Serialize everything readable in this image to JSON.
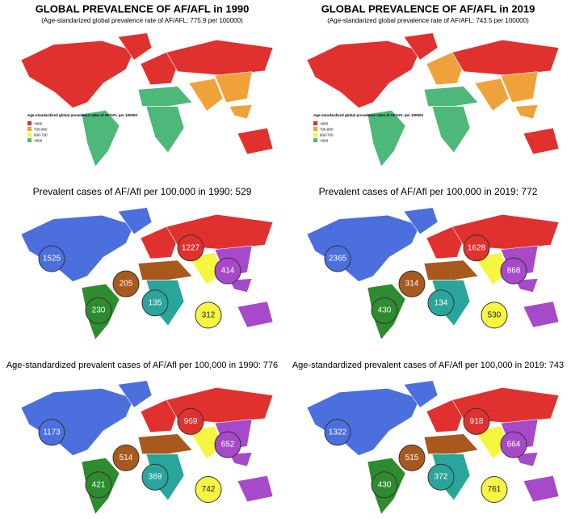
{
  "panels": [
    {
      "title": "GLOBAL PREVALENCE OF AF/AFL in 1990",
      "subtitle": "(Age-standarized global prevalence rate of AF/AFL: 775.9 per 100000)",
      "legend": {
        "title": "Age-standardized global prevalence rates of AF/AFL per 100000",
        "items": [
          ">800",
          "700-800",
          "600-700",
          "<600"
        ]
      }
    },
    {
      "title": "GLOBAL PREVALENCE OF AF/AFL in 2019",
      "subtitle": "(Age-standarized global prevalence rate of AF/AFL: 743.5 per 100000)",
      "legend": {
        "title": "Age-standardized global prevalence rates of AF/AFL per 100000",
        "items": [
          ">800",
          "700-800",
          "600-700",
          "<600"
        ]
      }
    },
    {
      "title": "Prevalent cases of AF/Afl per 100,000 in 1990: 529",
      "bubbles": [
        1525,
        1227,
        205,
        414,
        230,
        135,
        312
      ]
    },
    {
      "title": "Prevalent cases of AF/Afl per 100,000 in 2019: 772",
      "bubbles": [
        2365,
        1628,
        314,
        868,
        430,
        134,
        530
      ]
    },
    {
      "title": "Age-standardized prevalent cases of AF/Afl per 100,000 in 1990: 776",
      "bubbles": [
        1173,
        969,
        514,
        652,
        421,
        369,
        742
      ]
    },
    {
      "title": "Age-standardized prevalent cases of AF/Afl per 100,000 in 2019: 743",
      "bubbles": [
        1322,
        918,
        515,
        664,
        430,
        372,
        761
      ]
    }
  ]
}
